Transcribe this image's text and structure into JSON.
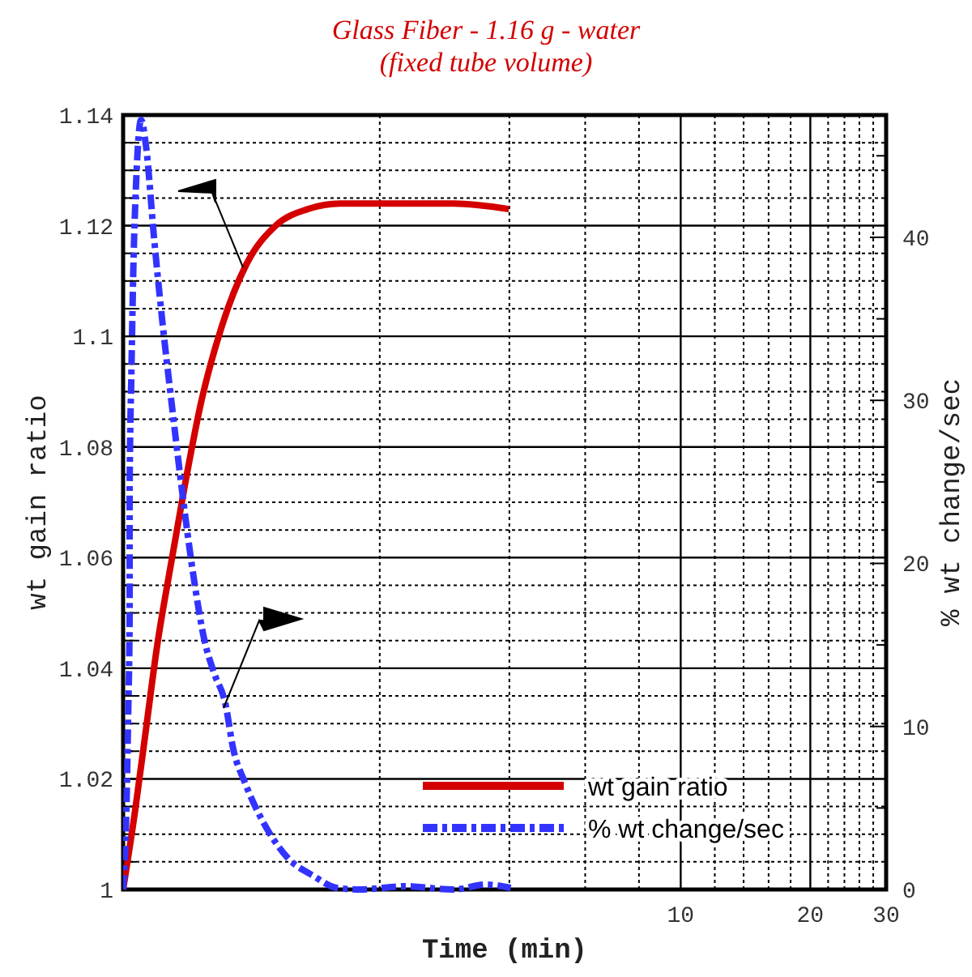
{
  "chart_data": {
    "type": "line",
    "title": "Glass Fiber - 1.16 g - water",
    "subtitle": "(fixed tube volume)",
    "xlabel": "Time (min)",
    "ylabel": "wt gain ratio",
    "y2label": "% wt change/sec",
    "log": "x",
    "grid": true,
    "legend": "bottom right",
    "marker": "none",
    "xlim": [
      0.507,
      30
    ],
    "xticks": [
      {
        "value": 2,
        "label": null
      },
      {
        "value": 4,
        "label": null
      },
      {
        "value": 6,
        "label": null
      },
      {
        "value": 8,
        "label": null
      },
      10,
      {
        "value": 12,
        "label": null
      },
      {
        "value": 14,
        "label": null
      },
      {
        "value": 16,
        "label": null
      },
      {
        "value": 18,
        "label": null
      },
      20,
      {
        "value": 22,
        "label": null
      },
      {
        "value": 24,
        "label": null
      },
      {
        "value": 26,
        "label": null
      },
      {
        "value": 28,
        "label": null
      },
      30
    ],
    "ylim": [
      1,
      1.14
    ],
    "yticks": [
      1,
      {
        "value": 1.005,
        "label": null
      },
      {
        "value": 1.01,
        "label": null
      },
      {
        "value": 1.015,
        "label": null
      },
      1.02,
      {
        "value": 1.025,
        "label": null
      },
      {
        "value": 1.03,
        "label": null
      },
      {
        "value": 1.035,
        "label": null
      },
      1.04,
      {
        "value": 1.045,
        "label": null
      },
      {
        "value": 1.05,
        "label": null
      },
      {
        "value": 1.055,
        "label": null
      },
      1.06,
      {
        "value": 1.065,
        "label": null
      },
      {
        "value": 1.07,
        "label": null
      },
      {
        "value": 1.075,
        "label": null
      },
      1.08,
      {
        "value": 1.085,
        "label": null
      },
      {
        "value": 1.09,
        "label": null
      },
      {
        "value": 1.095,
        "label": null
      },
      1.1,
      {
        "value": 1.105,
        "label": null
      },
      {
        "value": 1.11,
        "label": null
      },
      {
        "value": 1.115,
        "label": null
      },
      1.12,
      {
        "value": 1.125,
        "label": null
      },
      {
        "value": 1.13,
        "label": null
      },
      {
        "value": 1.135,
        "label": null
      },
      1.14
    ],
    "y2lim": [
      0,
      47.5
    ],
    "y2ticks": [
      0,
      {
        "value": 5,
        "label": null
      },
      10,
      {
        "value": 15,
        "label": null
      },
      20,
      {
        "value": 25,
        "label": null
      },
      30,
      {
        "value": 35,
        "label": null
      },
      40,
      {
        "value": 45,
        "label": null
      }
    ],
    "series": [
      {
        "name": "wt gain ratio",
        "color": "#d40000",
        "line_style": "solid",
        "x": [
          0.507,
          0.54,
          0.573,
          0.608,
          0.652,
          0.705,
          0.769,
          0.861,
          0.98,
          1.146,
          1.363,
          1.62,
          2.1,
          2.97,
          3.99
        ],
        "values": [
          1.0,
          1.014,
          1.029,
          1.044,
          1.058,
          1.073,
          1.088,
          1.102,
          1.113,
          1.12,
          1.123,
          1.124,
          1.124,
          1.124,
          1.123
        ]
      },
      {
        "name": "% wt change/sec",
        "color": "#3333ff",
        "line_style": "dashed",
        "axis": "y2",
        "x": [
          0.507,
          0.516,
          0.521,
          0.525,
          0.525,
          0.53,
          0.535,
          0.544,
          0.558,
          0.573,
          0.598,
          0.625,
          0.658,
          0.693,
          0.736,
          0.783,
          0.824,
          0.876,
          0.914,
          0.971,
          1.069,
          1.217,
          1.41,
          1.59,
          1.8,
          2.29,
          2.97,
          3.53,
          4.03
        ],
        "values": [
          0,
          4.9,
          10.8,
          16.8,
          24.7,
          31.7,
          37.6,
          43.6,
          47.2,
          45.6,
          40,
          34.9,
          29.7,
          24.7,
          19.5,
          15.3,
          13.3,
          11.4,
          8.6,
          6.6,
          4.2,
          2,
          0.8,
          0.1,
          0,
          0.2,
          0,
          0.3,
          0.1
        ]
      }
    ]
  }
}
